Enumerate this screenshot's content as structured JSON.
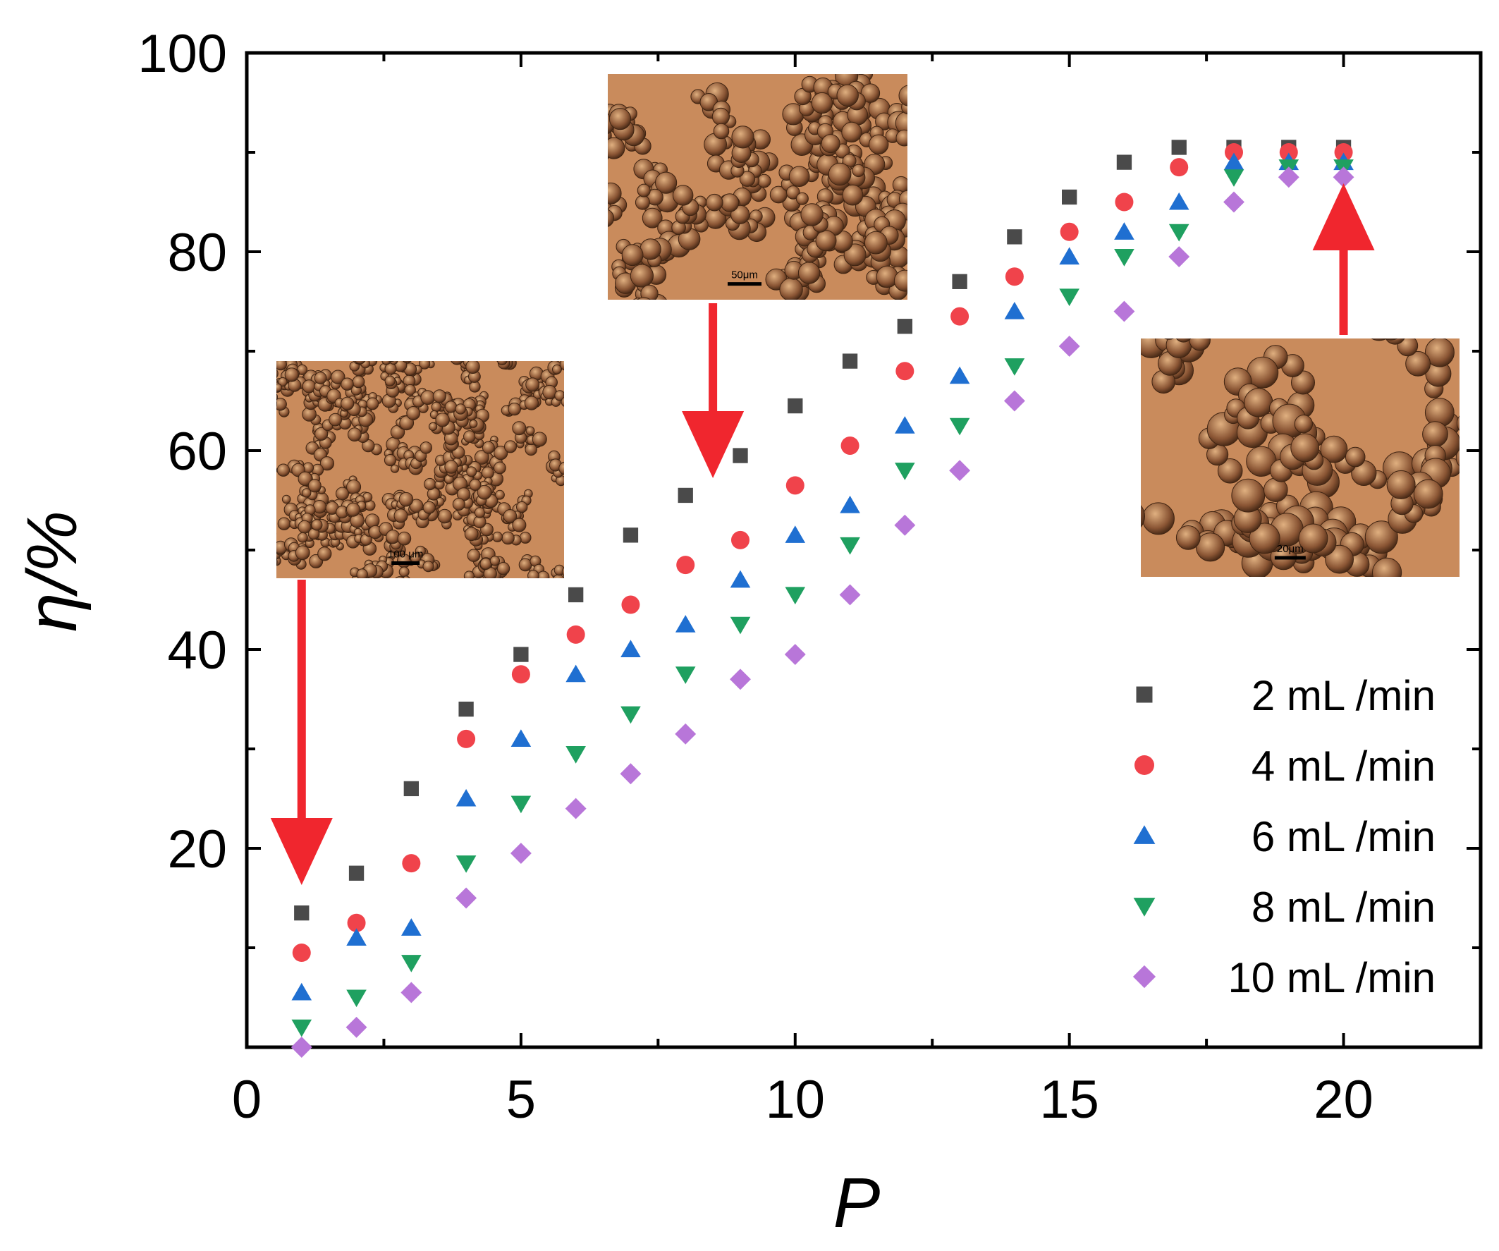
{
  "chart_data": {
    "type": "scatter",
    "xlabel": "P",
    "ylabel": "η/%",
    "xlim": [
      0,
      22.5
    ],
    "ylim": [
      0,
      100
    ],
    "xticks": [
      0,
      5,
      10,
      15,
      20
    ],
    "yticks": [
      20,
      40,
      60,
      80,
      100
    ],
    "grid": false,
    "legend_position": "bottom-right",
    "x": [
      1,
      2,
      3,
      4,
      5,
      6,
      7,
      8,
      9,
      10,
      11,
      12,
      13,
      14,
      15,
      16,
      17,
      18,
      19,
      20
    ],
    "series": [
      {
        "name": "2  mL /min",
        "marker": "square",
        "color": "#4a4a4a",
        "values": [
          13.5,
          17.5,
          26,
          34,
          39.5,
          45.5,
          51.5,
          55.5,
          59.5,
          64.5,
          69,
          72.5,
          77,
          81.5,
          85.5,
          89,
          90.5,
          90.5,
          90.5,
          90.5
        ]
      },
      {
        "name": "4  mL /min",
        "marker": "circle",
        "color": "#f0434b",
        "values": [
          9.5,
          12.5,
          18.5,
          31,
          37.5,
          41.5,
          44.5,
          48.5,
          51,
          56.5,
          60.5,
          68,
          73.5,
          77.5,
          82,
          85,
          88.5,
          90,
          90,
          90
        ]
      },
      {
        "name": "6  mL /min",
        "marker": "triangle-up",
        "color": "#1f6fd1",
        "values": [
          5.5,
          11,
          12,
          25,
          31,
          37.5,
          40,
          42.5,
          47,
          51.5,
          54.5,
          62.5,
          67.5,
          74,
          79.5,
          82,
          85,
          89,
          89,
          89
        ]
      },
      {
        "name": "8  mL /min",
        "marker": "triangle-down",
        "color": "#1fa060",
        "values": [
          2,
          5,
          8.5,
          18.5,
          24.5,
          29.5,
          33.5,
          37.5,
          42.5,
          45.5,
          50.5,
          58,
          62.5,
          68.5,
          75.5,
          79.5,
          82,
          87.5,
          88.5,
          88.5
        ]
      },
      {
        "name": "10  mL /min",
        "marker": "diamond",
        "color": "#b876d9",
        "values": [
          0,
          2,
          5.5,
          15,
          19.5,
          24,
          27.5,
          31.5,
          37,
          39.5,
          45.5,
          52.5,
          58,
          65,
          70.5,
          74,
          79.5,
          85,
          87.5,
          87.5
        ]
      }
    ],
    "insets": [
      {
        "scale_bar": "100 μm",
        "arrow_to_x": 1
      },
      {
        "scale_bar": "50μm",
        "arrow_to_x": 8.5
      },
      {
        "scale_bar": "20μm",
        "arrow_to_x": 20
      }
    ]
  },
  "colors": {
    "arrow": "#f0262e",
    "micrograph_bg": "#c98b5c"
  }
}
